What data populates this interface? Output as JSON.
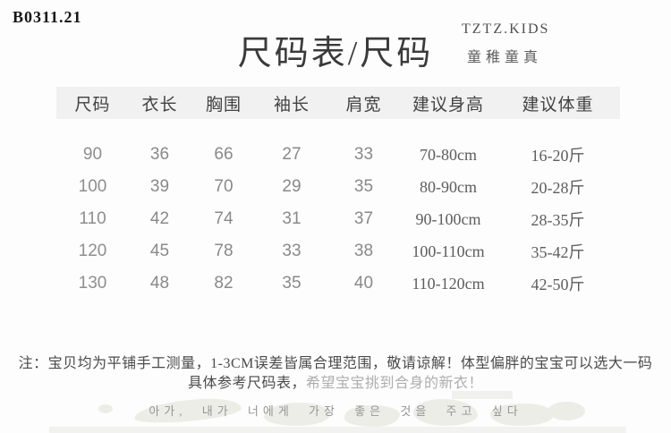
{
  "page": {
    "code": "B0311.21",
    "title": "尺码表/尺码",
    "brand": "TZTZ.KIDS",
    "brand_slogan": "童稚童真"
  },
  "size_table": {
    "columns": [
      "尺码",
      "衣长",
      "胸围",
      "袖长",
      "肩宽",
      "建议身高",
      "建议体重"
    ],
    "rows": [
      [
        "90",
        "36",
        "66",
        "27",
        "33",
        "70-80cm",
        "16-20斤"
      ],
      [
        "100",
        "39",
        "70",
        "29",
        "35",
        "80-90cm",
        "20-28斤"
      ],
      [
        "110",
        "42",
        "74",
        "31",
        "37",
        "90-100cm",
        "28-35斤"
      ],
      [
        "120",
        "45",
        "78",
        "33",
        "38",
        "100-110cm",
        "35-42斤"
      ],
      [
        "130",
        "48",
        "82",
        "35",
        "40",
        "110-120cm",
        "42-50斤"
      ]
    ]
  },
  "note": {
    "line1": "注：宝贝均为平铺手工测量，1-3CM误差皆属合理范围，敬请谅解！体型偏胖的宝宝可以选大一码",
    "line2_part1": "具体参考尺码表，",
    "line2_part2": "希望宝宝挑到合身的新衣！"
  },
  "footer": {
    "korean_text": "아가, 내가 너에게 가장 좋은 것을 주고 싶다"
  },
  "colors": {
    "header_band": "#f1f1f1",
    "title_text": "#3a3a3a",
    "number_text": "#898989",
    "range_text": "#5d5d5d",
    "note_text": "#4a4a4a",
    "faded_note_text": "#aeaeae",
    "korean_text": "#959595",
    "watermark": "#edede8"
  }
}
